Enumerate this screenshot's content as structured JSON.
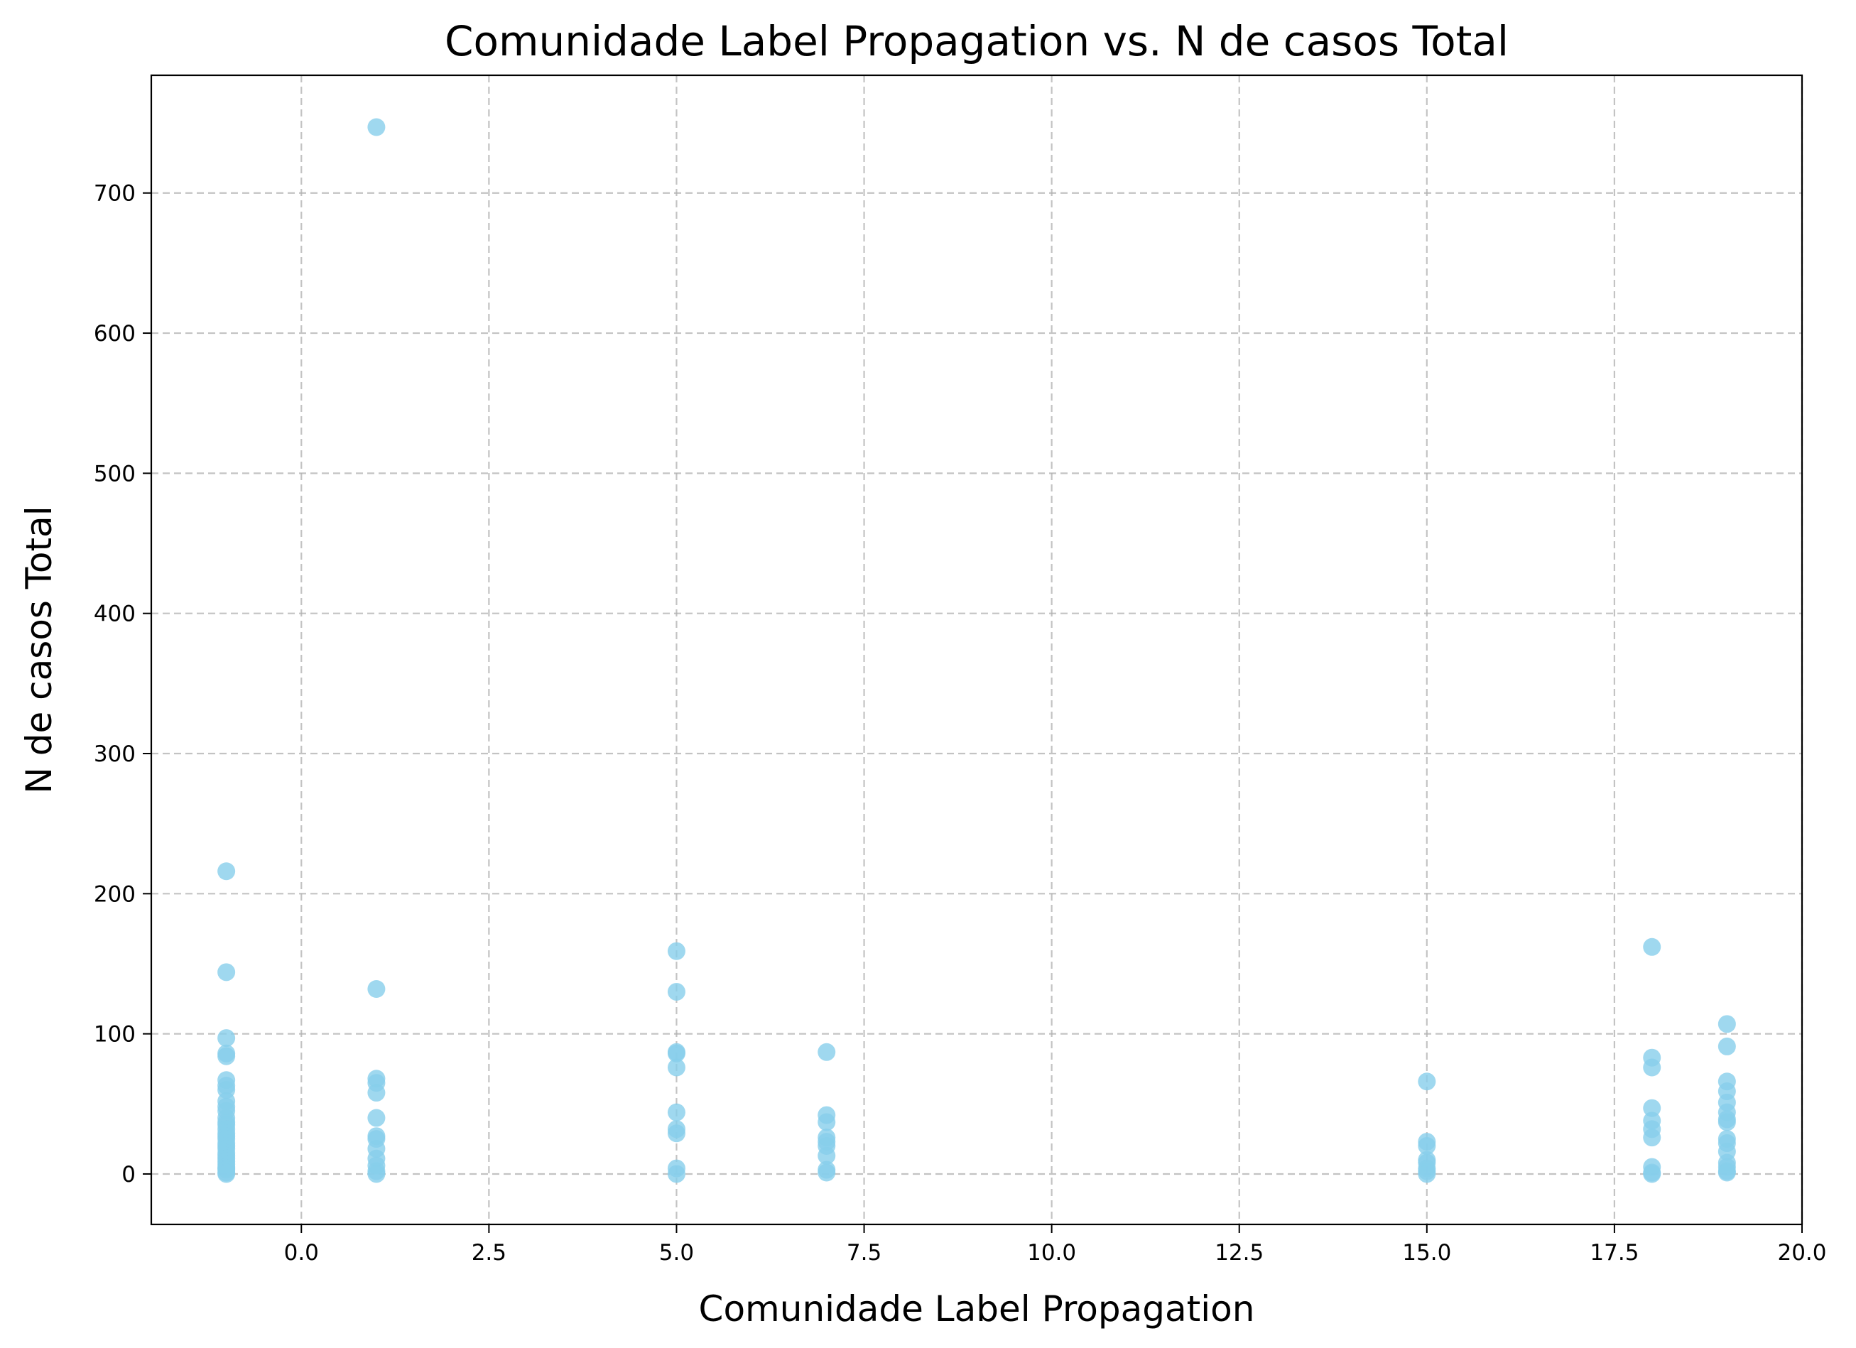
{
  "chart_data": {
    "type": "scatter",
    "title": "Comunidade Label Propagation vs. N de casos Total",
    "xlabel": "Comunidade Label Propagation",
    "ylabel": "N de casos Total",
    "xlim": [
      -2.0,
      20.0
    ],
    "ylim": [
      -36,
      784
    ],
    "xticks": [
      0.0,
      2.5,
      5.0,
      7.5,
      10.0,
      12.5,
      15.0,
      17.5,
      20.0
    ],
    "xtick_labels": [
      "0.0",
      "2.5",
      "5.0",
      "7.5",
      "10.0",
      "12.5",
      "15.0",
      "17.5",
      "20.0"
    ],
    "yticks": [
      0,
      100,
      200,
      300,
      400,
      500,
      600,
      700
    ],
    "ytick_labels": [
      "0",
      "100",
      "200",
      "300",
      "400",
      "500",
      "600",
      "700"
    ],
    "grid": true,
    "point_color": "#87ceeb",
    "series": [
      {
        "x": [
          -1,
          -1,
          -1,
          -1,
          -1,
          -1,
          -1,
          -1,
          -1,
          -1,
          -1,
          -1,
          -1,
          -1,
          -1,
          -1,
          -1,
          -1,
          -1,
          -1,
          -1,
          -1,
          -1,
          -1,
          -1,
          -1,
          -1,
          -1,
          -1,
          -1,
          -1,
          1,
          1,
          1,
          1,
          1,
          1,
          1,
          1,
          1,
          1,
          1,
          1,
          1,
          5,
          5,
          5,
          5,
          5,
          5,
          5,
          5,
          5,
          5,
          7,
          7,
          7,
          7,
          7,
          7,
          7,
          7,
          7,
          15,
          15,
          15,
          15,
          15,
          15,
          15,
          15,
          18,
          18,
          18,
          18,
          18,
          18,
          18,
          18,
          18,
          18,
          19,
          19,
          19,
          19,
          19,
          19,
          19,
          19,
          19,
          19,
          19,
          19,
          19,
          19,
          19
        ],
        "y": [
          216,
          144,
          97,
          86,
          84,
          67,
          63,
          60,
          52,
          48,
          45,
          40,
          37,
          35,
          32,
          29,
          27,
          25,
          22,
          20,
          18,
          15,
          13,
          11,
          9,
          7,
          5,
          4,
          3,
          1,
          0,
          747,
          132,
          68,
          65,
          58,
          40,
          27,
          25,
          18,
          11,
          6,
          2,
          0,
          159,
          130,
          87,
          86,
          76,
          44,
          32,
          29,
          4,
          0,
          87,
          42,
          37,
          26,
          23,
          20,
          13,
          3,
          1,
          66,
          23,
          20,
          10,
          8,
          4,
          2,
          0,
          162,
          83,
          76,
          47,
          38,
          32,
          26,
          5,
          1,
          0,
          107,
          91,
          66,
          59,
          51,
          44,
          39,
          37,
          25,
          22,
          16,
          8,
          5,
          2,
          1
        ]
      }
    ]
  }
}
